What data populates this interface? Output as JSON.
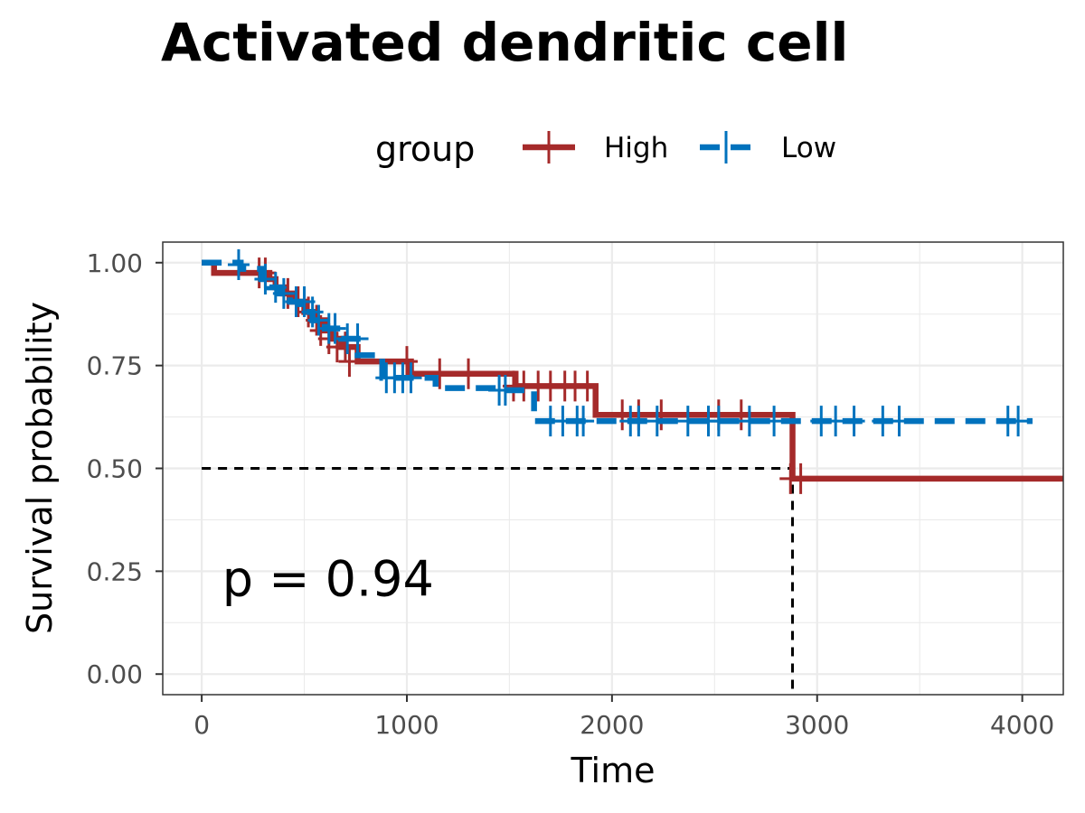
{
  "chart_data": {
    "type": "line",
    "subtype": "kaplan-meier",
    "title": "Activated dendritic cell",
    "legend": {
      "title": "group",
      "position": "top"
    },
    "xlabel": "Time",
    "ylabel": "Survival probability",
    "xlim": [
      -190,
      4200
    ],
    "ylim": [
      -0.05,
      1.05
    ],
    "x_ticks": [
      0,
      1000,
      2000,
      3000,
      4000
    ],
    "x_tick_labels": [
      "0",
      "1000",
      "2000",
      "3000",
      "4000"
    ],
    "y_ticks": [
      0,
      0.25,
      0.5,
      0.75,
      1.0
    ],
    "y_tick_labels": [
      "0.00",
      "0.25",
      "0.50",
      "0.75",
      "1.00"
    ],
    "grid": true,
    "annotation": "p = 0.94",
    "annotation_pos": [
      100,
      0.19
    ],
    "median_line": {
      "y": 0.5,
      "x": 2880
    },
    "series": [
      {
        "name": "High",
        "color": "#A52A2A",
        "dash": "solid",
        "steps": [
          [
            0,
            1.0
          ],
          [
            60,
            0.975
          ],
          [
            330,
            0.96
          ],
          [
            360,
            0.94
          ],
          [
            400,
            0.925
          ],
          [
            440,
            0.905
          ],
          [
            500,
            0.88
          ],
          [
            560,
            0.86
          ],
          [
            600,
            0.835
          ],
          [
            640,
            0.815
          ],
          [
            680,
            0.795
          ],
          [
            760,
            0.76
          ],
          [
            1020,
            0.73
          ],
          [
            1530,
            0.7
          ],
          [
            1920,
            0.63
          ],
          [
            2880,
            0.475
          ],
          [
            4200,
            0.475
          ]
        ],
        "censor": [
          [
            280,
            0.975
          ],
          [
            310,
            0.975
          ],
          [
            420,
            0.925
          ],
          [
            470,
            0.905
          ],
          [
            520,
            0.88
          ],
          [
            560,
            0.86
          ],
          [
            580,
            0.835
          ],
          [
            620,
            0.815
          ],
          [
            660,
            0.795
          ],
          [
            700,
            0.795
          ],
          [
            720,
            0.76
          ],
          [
            1000,
            0.76
          ],
          [
            1160,
            0.73
          ],
          [
            1300,
            0.73
          ],
          [
            1520,
            0.7
          ],
          [
            1570,
            0.7
          ],
          [
            1640,
            0.7
          ],
          [
            1700,
            0.7
          ],
          [
            1770,
            0.7
          ],
          [
            1820,
            0.7
          ],
          [
            1880,
            0.7
          ],
          [
            2050,
            0.63
          ],
          [
            2130,
            0.63
          ],
          [
            2240,
            0.63
          ],
          [
            2520,
            0.63
          ],
          [
            2630,
            0.63
          ],
          [
            2870,
            0.475
          ],
          [
            2920,
            0.475
          ]
        ]
      },
      {
        "name": "Low",
        "color": "#0072BD",
        "dash": "dashed",
        "steps": [
          [
            0,
            1.0
          ],
          [
            190,
            0.985
          ],
          [
            290,
            0.96
          ],
          [
            330,
            0.94
          ],
          [
            380,
            0.925
          ],
          [
            430,
            0.905
          ],
          [
            480,
            0.88
          ],
          [
            540,
            0.86
          ],
          [
            600,
            0.84
          ],
          [
            680,
            0.815
          ],
          [
            760,
            0.775
          ],
          [
            880,
            0.72
          ],
          [
            1140,
            0.695
          ],
          [
            1450,
            0.69
          ],
          [
            1620,
            0.615
          ],
          [
            4050,
            0.615
          ]
        ],
        "censor": [
          [
            180,
            0.995
          ],
          [
            310,
            0.96
          ],
          [
            360,
            0.94
          ],
          [
            400,
            0.925
          ],
          [
            460,
            0.905
          ],
          [
            500,
            0.905
          ],
          [
            540,
            0.88
          ],
          [
            570,
            0.86
          ],
          [
            620,
            0.84
          ],
          [
            650,
            0.84
          ],
          [
            710,
            0.815
          ],
          [
            760,
            0.815
          ],
          [
            900,
            0.72
          ],
          [
            940,
            0.72
          ],
          [
            980,
            0.72
          ],
          [
            1020,
            0.72
          ],
          [
            1450,
            0.69
          ],
          [
            1480,
            0.69
          ],
          [
            1700,
            0.615
          ],
          [
            1760,
            0.615
          ],
          [
            1830,
            0.615
          ],
          [
            1860,
            0.615
          ],
          [
            2090,
            0.615
          ],
          [
            2130,
            0.615
          ],
          [
            2220,
            0.615
          ],
          [
            2370,
            0.615
          ],
          [
            2470,
            0.615
          ],
          [
            2520,
            0.615
          ],
          [
            2670,
            0.615
          ],
          [
            2790,
            0.615
          ],
          [
            3020,
            0.615
          ],
          [
            3090,
            0.615
          ],
          [
            3180,
            0.615
          ],
          [
            3320,
            0.615
          ],
          [
            3400,
            0.615
          ],
          [
            3930,
            0.615
          ],
          [
            3980,
            0.615
          ]
        ]
      }
    ]
  }
}
